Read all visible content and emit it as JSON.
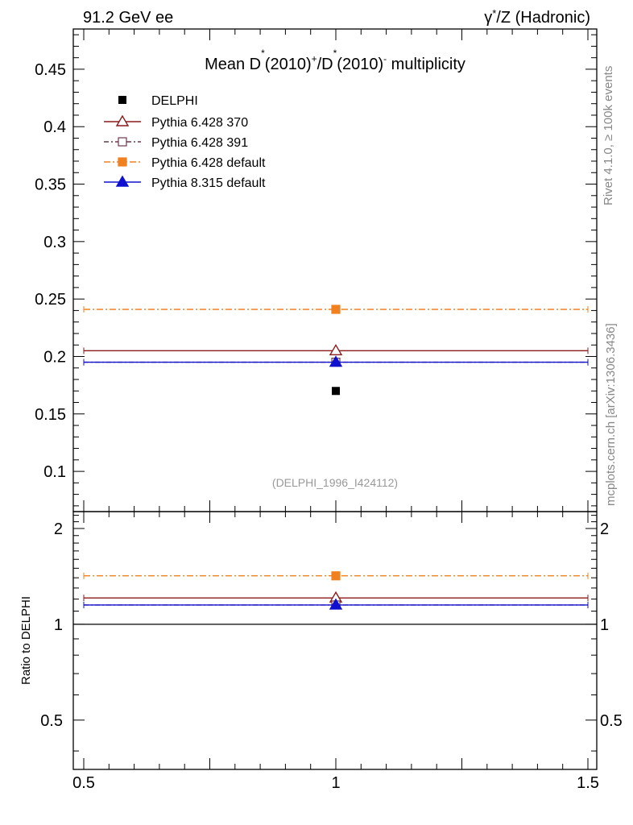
{
  "header": {
    "left": "91.2 GeV ee",
    "right_parts": [
      "γ",
      "*",
      "/Z (Hadronic)"
    ]
  },
  "title": {
    "p1": "Mean D",
    "sup1": "*",
    "p2": "(2010)",
    "sup2": "+",
    "p3": "/D",
    "sup3": "*",
    "p4": "(2010)",
    "sup4": "-",
    "p5": " multiplicity"
  },
  "side_labels": {
    "rivet": "Rivet 4.1.0, ≥ 100k events",
    "mcplots": "mcplots.cern.ch [arXiv:1306.3436]"
  },
  "analysis_id": "(DELPHI_1996_I424112)",
  "ratio_ylabel": "Ratio to DELPHI",
  "chart_data": {
    "type": "scatter",
    "x_range": [
      0.5,
      1.5
    ],
    "main_ylim": [
      0.065,
      0.485
    ],
    "ratio_ylim": [
      0.35,
      2.26
    ],
    "x_ticks": [
      {
        "v": 0.5,
        "label": "0.5"
      },
      {
        "v": 1,
        "label": "1"
      },
      {
        "v": 1.5,
        "label": "1.5"
      }
    ],
    "main_y_ticks": [
      {
        "v": 0.1,
        "label": "0.1"
      },
      {
        "v": 0.15,
        "label": "0.15"
      },
      {
        "v": 0.2,
        "label": "0.2"
      },
      {
        "v": 0.25,
        "label": "0.25"
      },
      {
        "v": 0.3,
        "label": "0.3"
      },
      {
        "v": 0.35,
        "label": "0.35"
      },
      {
        "v": 0.4,
        "label": "0.4"
      },
      {
        "v": 0.45,
        "label": "0.45"
      }
    ],
    "ratio_y_ticks": [
      {
        "v": 0.5,
        "label": "0.5"
      },
      {
        "v": 1,
        "label": "1"
      },
      {
        "v": 2,
        "label": "2"
      }
    ],
    "data": {
      "name": "DELPHI",
      "x": 1,
      "y": 0.17,
      "color": "#000000"
    },
    "series": [
      {
        "name": "Pythia 6.428 370",
        "color": "#8b1a1a",
        "marker": "triangle-open",
        "dash": "",
        "x": 1,
        "xlow": 0.5,
        "xhigh": 1.5,
        "y": 0.205,
        "ratio": 1.21
      },
      {
        "name": "Pythia 6.428 391",
        "color": "#6b3a4a",
        "marker": "square-open",
        "dash": "6 3 2 3",
        "x": 1,
        "xlow": 0.5,
        "xhigh": 1.5,
        "y": 0.195,
        "ratio": 1.15
      },
      {
        "name": "Pythia 6.428 default",
        "color": "#f08020",
        "marker": "square",
        "dash": "8 3 2 3",
        "x": 1,
        "xlow": 0.5,
        "xhigh": 1.5,
        "y": 0.241,
        "ratio": 1.42
      },
      {
        "name": "Pythia 8.315 default",
        "color": "#1010d0",
        "marker": "triangle",
        "dash": "",
        "x": 1,
        "xlow": 0.5,
        "xhigh": 1.5,
        "y": 0.195,
        "ratio": 1.15
      }
    ]
  }
}
